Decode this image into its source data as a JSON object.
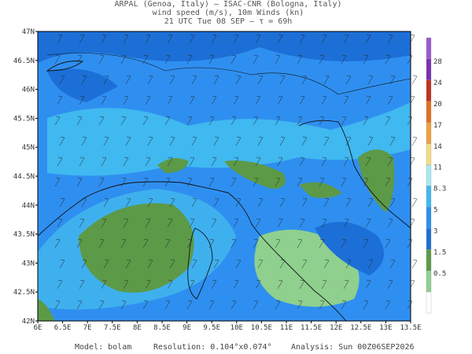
{
  "header": {
    "line1": "ARPAL (Genoa, Italy)  —  ISAC-CNR (Bologna, Italy)",
    "line2": "wind speed (m/s), 10m Winds (kn)",
    "line3": "21 UTC Tue 08 SEP  —  τ = 69h"
  },
  "lon_labels": [
    "6E",
    "6.5E",
    "7E",
    "7.5E",
    "8E",
    "8.5E",
    "9E",
    "9.5E",
    "10E",
    "10.5E",
    "11E",
    "11.5E",
    "12E",
    "12.5E",
    "13E",
    "13.5E"
  ],
  "lat_labels": [
    "47N",
    "46.5N",
    "46N",
    "45.5N",
    "45N",
    "44.5N",
    "44N",
    "43.5N",
    "43N",
    "42.5N",
    "42N"
  ],
  "colorbar_labels": [
    "28",
    "24",
    "20",
    "17",
    "14",
    "11",
    "8.3",
    "5",
    "3",
    "1.5",
    "0.5"
  ],
  "footer": {
    "model": "Model: bolam",
    "resolution": "Resolution: 0.104°x0.074°",
    "analysis": "Analysis: Sun 00Z06SEP2026"
  }
}
